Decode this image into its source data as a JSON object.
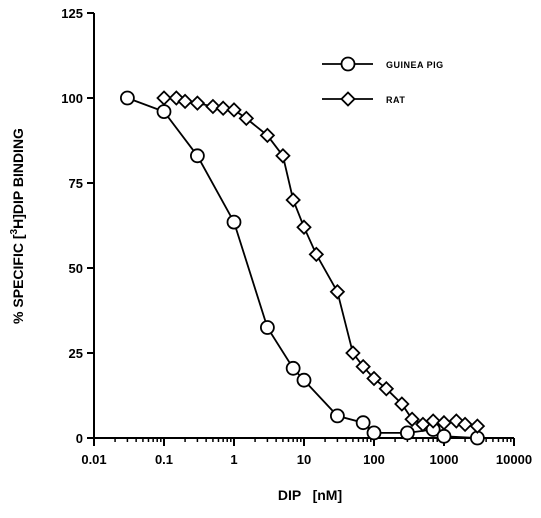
{
  "chart_data": {
    "type": "line",
    "xlabel": "DIP   [nM]",
    "ylabel_parts": [
      "% SPECIFIC [",
      "3",
      "H]DIP BINDING"
    ],
    "x_scale": "log",
    "xlim": [
      0.01,
      10000
    ],
    "ylim": [
      0,
      125
    ],
    "x_ticks": [
      0.01,
      0.1,
      1,
      10,
      100,
      1000,
      10000
    ],
    "x_tick_labels": [
      "0.01",
      "0.1",
      "1",
      "10",
      "100",
      "1000",
      "10000"
    ],
    "y_ticks": [
      0,
      25,
      50,
      75,
      100,
      125
    ],
    "y_tick_labels": [
      "0",
      "25",
      "50",
      "75",
      "100",
      "125"
    ],
    "grid": false,
    "legend_position": "top-right",
    "series": [
      {
        "name": "GUINEA PIG",
        "marker": "circle",
        "x": [
          0.03,
          0.1,
          0.3,
          1,
          3,
          7,
          10,
          30,
          70,
          100,
          300,
          700,
          1000,
          3000
        ],
        "y": [
          100,
          96,
          83,
          63.5,
          32.5,
          20.5,
          17,
          6.5,
          4.5,
          1.5,
          1.5,
          2.5,
          0.5,
          0
        ]
      },
      {
        "name": "RAT",
        "marker": "diamond",
        "x": [
          0.1,
          0.15,
          0.2,
          0.3,
          0.5,
          0.7,
          1,
          1.5,
          3,
          5,
          7,
          10,
          15,
          30,
          50,
          70,
          100,
          150,
          250,
          350,
          500,
          700,
          1000,
          1500,
          2000,
          3000
        ],
        "y": [
          100,
          100,
          99,
          98.5,
          97.5,
          97,
          96.5,
          94,
          89,
          83,
          70,
          62,
          54,
          43,
          25,
          21,
          17.5,
          14.5,
          10,
          5.5,
          4,
          5,
          4.5,
          5,
          4,
          3.5
        ]
      }
    ]
  }
}
